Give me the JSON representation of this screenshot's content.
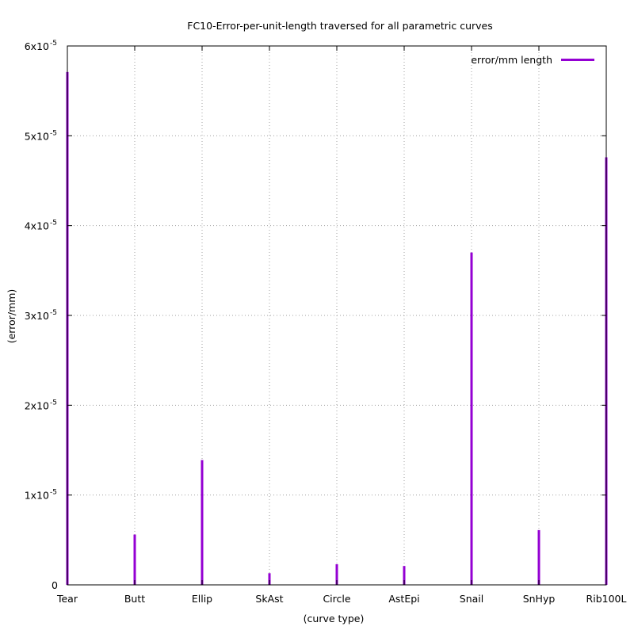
{
  "chart_data": {
    "type": "bar",
    "title": "FC10-Error-per-unit-length traversed for all parametric curves",
    "xlabel": "(curve type)",
    "ylabel": "(error/mm)",
    "categories": [
      "Tear",
      "Butt",
      "Ellip",
      "SkAst",
      "Circle",
      "AstEpi",
      "Snail",
      "SnHyp",
      "Rib100L"
    ],
    "series": [
      {
        "name": "error/mm length",
        "color": "#9400d3",
        "values": [
          5.71e-05,
          5.6e-06,
          1.39e-05,
          1.3e-06,
          2.3e-06,
          2.1e-06,
          3.7e-05,
          6.1e-06,
          4.76e-05
        ]
      }
    ],
    "ylim": [
      0,
      6e-05
    ],
    "yticks": [
      {
        "value": 0,
        "base": "0",
        "exp": ""
      },
      {
        "value": 1e-05,
        "base": "1x10",
        "exp": "-5"
      },
      {
        "value": 2e-05,
        "base": "2x10",
        "exp": "-5"
      },
      {
        "value": 3e-05,
        "base": "3x10",
        "exp": "-5"
      },
      {
        "value": 4e-05,
        "base": "4x10",
        "exp": "-5"
      },
      {
        "value": 5e-05,
        "base": "5x10",
        "exp": "-5"
      },
      {
        "value": 6e-05,
        "base": "6x10",
        "exp": "-5"
      }
    ],
    "grid": true,
    "legend_position": "top-right"
  }
}
